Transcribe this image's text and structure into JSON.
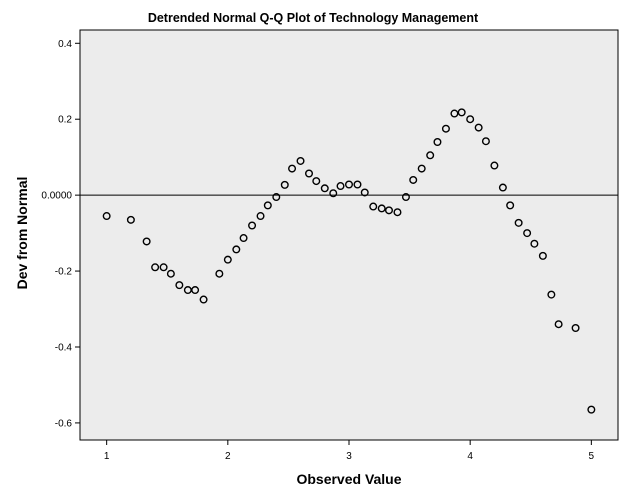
{
  "chart_data": {
    "type": "scatter",
    "title": "Detrended Normal Q-Q Plot of Technology Management",
    "xlabel": "Observed Value",
    "ylabel": "Dev from Normal",
    "xlim": [
      0.78,
      5.22
    ],
    "ylim": [
      -0.645,
      0.435
    ],
    "xticks": [
      1,
      2,
      3,
      4,
      5
    ],
    "xtick_labels": [
      "1",
      "2",
      "3",
      "4",
      "5"
    ],
    "yticks": [
      0.4,
      0.2,
      0.0,
      -0.2,
      -0.4,
      -0.6
    ],
    "ytick_labels": [
      "0.4",
      "0.2",
      "0.0000",
      "-0.2",
      "-0.4",
      "-0.6"
    ],
    "reference_line_y": 0.0,
    "grid": false,
    "legend": "none",
    "colors": {
      "background": "#ececec",
      "frame": "#000000",
      "marker": "#000000",
      "page": "#ffffff"
    },
    "series": [
      {
        "x": [
          1.0,
          1.2,
          1.33,
          1.4,
          1.47,
          1.53,
          1.6,
          1.67,
          1.73,
          1.8,
          1.93,
          2.0,
          2.07,
          2.13,
          2.2,
          2.27,
          2.33,
          2.4,
          2.47,
          2.53,
          2.6,
          2.67,
          2.73,
          2.8,
          2.87,
          2.93,
          3.0,
          3.07,
          3.13,
          3.2,
          3.27,
          3.33,
          3.4,
          3.47,
          3.53,
          3.6,
          3.67,
          3.73,
          3.8,
          3.87,
          3.93,
          4.0,
          4.07,
          4.13,
          4.2,
          4.27,
          4.33,
          4.4,
          4.47,
          4.53,
          4.6,
          4.67,
          4.73,
          4.87,
          5.0
        ],
        "y": [
          -0.055,
          -0.065,
          -0.122,
          -0.19,
          -0.19,
          -0.207,
          -0.237,
          -0.25,
          -0.25,
          -0.275,
          -0.207,
          -0.17,
          -0.143,
          -0.113,
          -0.08,
          -0.055,
          -0.027,
          -0.005,
          0.027,
          0.07,
          0.09,
          0.057,
          0.037,
          0.018,
          0.005,
          0.024,
          0.028,
          0.028,
          0.007,
          -0.03,
          -0.035,
          -0.04,
          -0.045,
          -0.005,
          0.04,
          0.07,
          0.105,
          0.14,
          0.175,
          0.215,
          0.218,
          0.2,
          0.178,
          0.142,
          0.078,
          0.02,
          -0.027,
          -0.073,
          -0.1,
          -0.128,
          -0.16,
          -0.262,
          -0.34,
          -0.35,
          -0.565
        ]
      }
    ]
  }
}
